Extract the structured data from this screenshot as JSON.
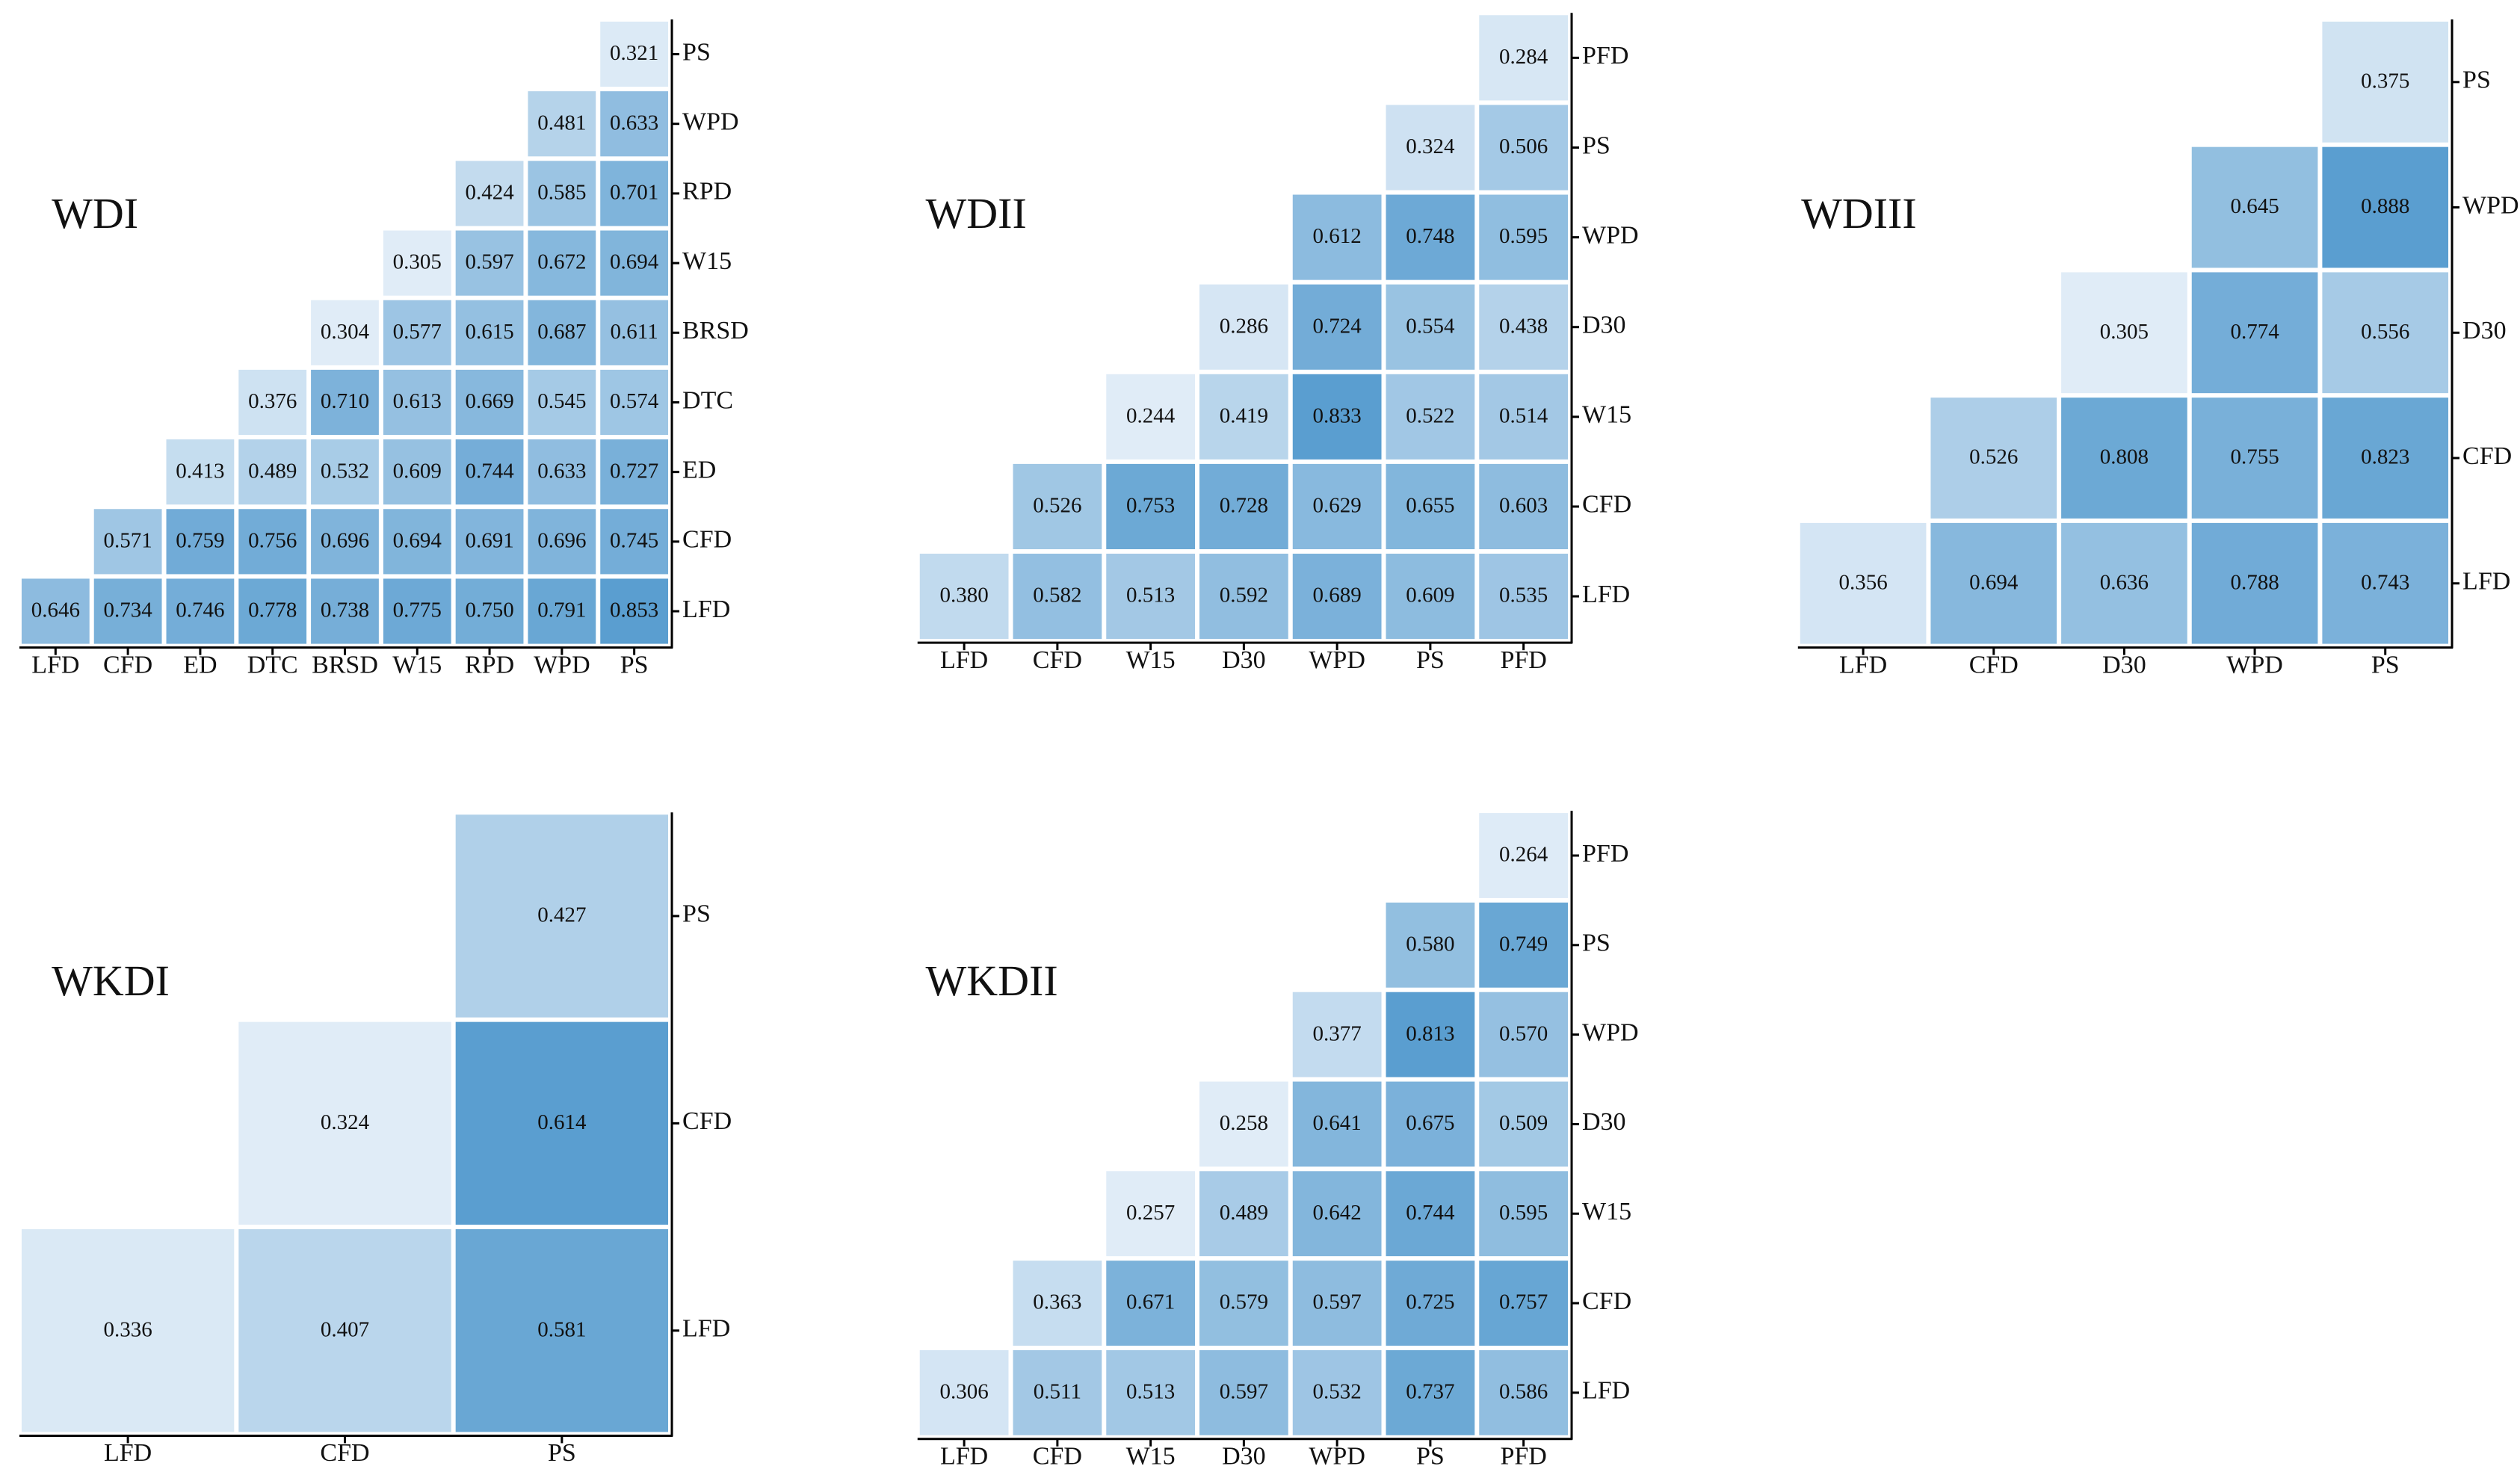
{
  "chart_data": [
    {
      "type": "heatmap",
      "title": "WDI",
      "colors": [
        "#e0ecf7",
        "#5a9ed0"
      ],
      "x_categories": [
        "LFD",
        "CFD",
        "ED",
        "DTC",
        "BRSD",
        "W15",
        "RPD",
        "WPD",
        "PS"
      ],
      "y_categories": [
        "LFD",
        "CFD",
        "ED",
        "DTC",
        "BRSD",
        "W15",
        "RPD",
        "WPD",
        "PS"
      ],
      "values": [
        [
          0.646,
          0.734,
          0.746,
          0.778,
          0.738,
          0.775,
          0.75,
          0.791,
          0.853
        ],
        [
          null,
          0.571,
          0.759,
          0.756,
          0.696,
          0.694,
          0.691,
          0.696,
          0.745
        ],
        [
          null,
          null,
          0.413,
          0.489,
          0.532,
          0.609,
          0.744,
          0.633,
          0.727
        ],
        [
          null,
          null,
          null,
          0.376,
          0.71,
          0.613,
          0.669,
          0.545,
          0.574
        ],
        [
          null,
          null,
          null,
          null,
          0.304,
          0.577,
          0.615,
          0.687,
          0.611
        ],
        [
          null,
          null,
          null,
          null,
          null,
          0.305,
          0.597,
          0.672,
          0.694
        ],
        [
          null,
          null,
          null,
          null,
          null,
          null,
          0.424,
          0.585,
          0.701
        ],
        [
          null,
          null,
          null,
          null,
          null,
          null,
          null,
          0.481,
          0.633
        ],
        [
          null,
          null,
          null,
          null,
          null,
          null,
          null,
          null,
          0.321
        ]
      ],
      "value_labels": [
        [
          "0.646",
          "0.734",
          "0.746",
          "0.778",
          "0.738",
          "0.775",
          "0.750",
          "0.791",
          "0.853"
        ],
        [
          null,
          "0.571",
          "0.759",
          "0.756",
          "0.696",
          "0.694",
          "0.691",
          "0.696",
          "0.745"
        ],
        [
          null,
          null,
          "0.413",
          "0.489",
          "0.532",
          "0.609",
          "0.744",
          "0.633",
          "0.727"
        ],
        [
          null,
          null,
          null,
          "0.376",
          "0.710",
          "0.613",
          "0.669",
          "0.545",
          "0.574"
        ],
        [
          null,
          null,
          null,
          null,
          "0.304",
          "0.577",
          "0.615",
          "0.687",
          "0.611"
        ],
        [
          null,
          null,
          null,
          null,
          null,
          "0.305",
          "0.597",
          "0.672",
          "0.694"
        ],
        [
          null,
          null,
          null,
          null,
          null,
          null,
          "0.424",
          "0.585",
          "0.701"
        ],
        [
          null,
          null,
          null,
          null,
          null,
          null,
          null,
          "0.481",
          "0.633"
        ],
        [
          null,
          null,
          null,
          null,
          null,
          null,
          null,
          null,
          "0.321"
        ]
      ]
    },
    {
      "type": "heatmap",
      "title": "WDII",
      "colors": [
        "#e0ecf7",
        "#5a9ed0"
      ],
      "x_categories": [
        "LFD",
        "CFD",
        "W15",
        "D30",
        "WPD",
        "PS",
        "PFD"
      ],
      "y_categories": [
        "LFD",
        "CFD",
        "W15",
        "D30",
        "WPD",
        "PS",
        "PFD"
      ],
      "values": [
        [
          0.38,
          0.582,
          0.513,
          0.592,
          0.689,
          0.609,
          0.535
        ],
        [
          null,
          0.526,
          0.753,
          0.728,
          0.629,
          0.655,
          0.603
        ],
        [
          null,
          null,
          0.244,
          0.419,
          0.833,
          0.522,
          0.514
        ],
        [
          null,
          null,
          null,
          0.286,
          0.724,
          0.554,
          0.438
        ],
        [
          null,
          null,
          null,
          null,
          0.612,
          0.748,
          0.595
        ],
        [
          null,
          null,
          null,
          null,
          null,
          0.324,
          0.506
        ],
        [
          null,
          null,
          null,
          null,
          null,
          null,
          0.284
        ]
      ],
      "value_labels": [
        [
          "0.380",
          "0.582",
          "0.513",
          "0.592",
          "0.689",
          "0.609",
          "0.535"
        ],
        [
          null,
          "0.526",
          "0.753",
          "0.728",
          "0.629",
          "0.655",
          "0.603"
        ],
        [
          null,
          null,
          "0.244",
          "0.419",
          "0.833",
          "0.522",
          "0.514"
        ],
        [
          null,
          null,
          null,
          "0.286",
          "0.724",
          "0.554",
          "0.438"
        ],
        [
          null,
          null,
          null,
          null,
          "0.612",
          "0.748",
          "0.595"
        ],
        [
          null,
          null,
          null,
          null,
          null,
          "0.324",
          "0.506"
        ],
        [
          null,
          null,
          null,
          null,
          null,
          null,
          "0.284"
        ]
      ]
    },
    {
      "type": "heatmap",
      "title": "WDIII",
      "colors": [
        "#e0ecf7",
        "#5a9ed0"
      ],
      "x_categories": [
        "LFD",
        "CFD",
        "D30",
        "WPD",
        "PS"
      ],
      "y_categories": [
        "LFD",
        "CFD",
        "D30",
        "WPD",
        "PS"
      ],
      "values": [
        [
          0.356,
          0.694,
          0.636,
          0.788,
          0.743
        ],
        [
          null,
          0.526,
          0.808,
          0.755,
          0.823
        ],
        [
          null,
          null,
          0.305,
          0.774,
          0.556
        ],
        [
          null,
          null,
          null,
          0.645,
          0.888
        ],
        [
          null,
          null,
          null,
          null,
          0.375
        ]
      ]
    },
    {
      "type": "heatmap",
      "title": "WKDI",
      "colors": [
        "#e0ecf7",
        "#5a9ed0"
      ],
      "x_categories": [
        "LFD",
        "CFD",
        "PS"
      ],
      "y_categories": [
        "LFD",
        "CFD",
        "PS"
      ],
      "values": [
        [
          0.336,
          0.407,
          0.581
        ],
        [
          null,
          0.324,
          0.614
        ],
        [
          null,
          null,
          0.427
        ]
      ]
    },
    {
      "type": "heatmap",
      "title": "WKDII",
      "colors": [
        "#e0ecf7",
        "#5a9ed0"
      ],
      "x_categories": [
        "LFD",
        "CFD",
        "W15",
        "D30",
        "WPD",
        "PS",
        "PFD"
      ],
      "y_categories": [
        "LFD",
        "CFD",
        "W15",
        "D30",
        "WPD",
        "PS",
        "PFD"
      ],
      "values": [
        [
          0.306,
          0.511,
          0.513,
          0.597,
          0.532,
          0.737,
          0.586
        ],
        [
          null,
          0.363,
          0.671,
          0.579,
          0.597,
          0.725,
          0.757
        ],
        [
          null,
          null,
          0.257,
          0.489,
          0.642,
          0.744,
          0.595
        ],
        [
          null,
          null,
          null,
          0.258,
          0.641,
          0.675,
          0.509
        ],
        [
          null,
          null,
          null,
          null,
          0.377,
          0.813,
          0.57
        ],
        [
          null,
          null,
          null,
          null,
          null,
          0.58,
          0.749
        ],
        [
          null,
          null,
          null,
          null,
          null,
          null,
          0.264
        ]
      ],
      "value_labels": [
        [
          "0.306",
          "0.511",
          "0.513",
          "0.597",
          "0.532",
          "0.737",
          "0.586"
        ],
        [
          null,
          "0.363",
          "0.671",
          "0.579",
          "0.597",
          "0.725",
          "0.757"
        ],
        [
          null,
          null,
          "0.257",
          "0.489",
          "0.642",
          "0.744",
          "0.595"
        ],
        [
          null,
          null,
          null,
          "0.258",
          "0.641",
          "0.675",
          "0.509"
        ],
        [
          null,
          null,
          null,
          null,
          "0.377",
          "0.813",
          "0.570"
        ],
        [
          null,
          null,
          null,
          null,
          null,
          "0.580",
          "0.749"
        ],
        [
          null,
          null,
          null,
          null,
          null,
          null,
          "0.264"
        ]
      ]
    }
  ]
}
